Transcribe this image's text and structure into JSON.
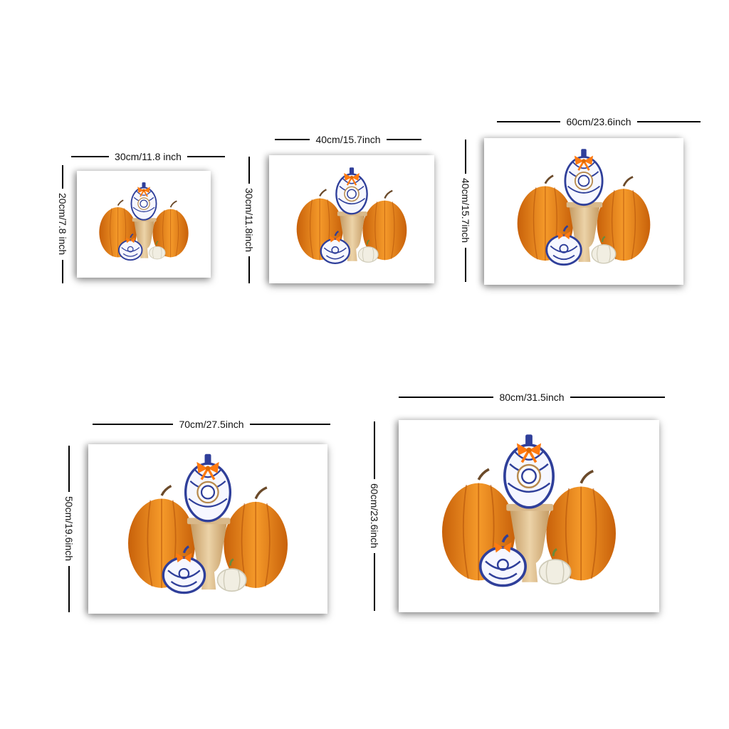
{
  "sizes": [
    {
      "width_label": "30cm/11.8 inch",
      "height_label": "20cm/7.8 inch"
    },
    {
      "width_label": "40cm/15.7inch",
      "height_label": "30cm/11.8inch"
    },
    {
      "width_label": "60cm/23.6inch",
      "height_label": "40cm/15.7inch"
    },
    {
      "width_label": "70cm/27.5inch",
      "height_label": "50cm/19.6inch"
    },
    {
      "width_label": "80cm/31.5inch",
      "height_label": "60cm/23.6inch"
    }
  ],
  "colors": {
    "pumpkin": "#f08a1c",
    "pumpkin_dark": "#c8610a",
    "porcelain_blue": "#2f3f9a",
    "urn": "#d9b98a",
    "white_pumpkin": "#f1eee2",
    "bow": "#ff7a10"
  }
}
